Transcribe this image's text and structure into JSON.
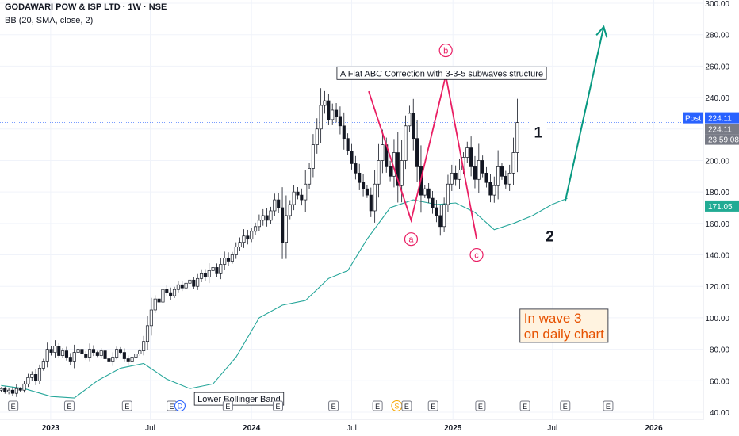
{
  "header": {
    "title": "GODAWARI POW & ISP LTD · 1W · NSE",
    "indicator": "BB (20, SMA, close, 2)"
  },
  "colors": {
    "up": "#26a69a",
    "down": "#131722",
    "candle": "#131722",
    "band": "#26a69a",
    "wave_line": "#e91e63",
    "arrow": "#089981",
    "post_badge": "#2962ff",
    "band_badge": "#22ab94",
    "target_text": "#e65100",
    "target_bg": "#fff3e0"
  },
  "chart_data": {
    "type": "candlestick",
    "y_axis": {
      "side": "right",
      "ylim": [
        40,
        300
      ],
      "ticks": [
        "40.00",
        "60.00",
        "80.00",
        "100.00",
        "120.00",
        "140.00",
        "160.00",
        "180.00",
        "200.00",
        "220.00",
        "240.00",
        "260.00",
        "280.00",
        "300.00"
      ]
    },
    "x_axis": {
      "start": "2022-10-01",
      "end": "2026-04-01",
      "ticks": [
        {
          "label": "2023",
          "date": "2023-01-01",
          "bold": true
        },
        {
          "label": "Jul",
          "date": "2023-07-01",
          "bold": false
        },
        {
          "label": "2024",
          "date": "2024-01-01",
          "bold": true
        },
        {
          "label": "Jul",
          "date": "2024-07-01",
          "bold": false
        },
        {
          "label": "2025",
          "date": "2025-01-01",
          "bold": true
        },
        {
          "label": "Jul",
          "date": "2025-07-01",
          "bold": false
        },
        {
          "label": "2026",
          "date": "2026-01-01",
          "bold": true
        }
      ]
    },
    "price_badges": [
      {
        "label": "Post",
        "value": "224.11",
        "kind": "post"
      },
      {
        "value": "224.11",
        "kind": "last"
      },
      {
        "value": "23:59:08",
        "kind": "countdown"
      },
      {
        "value": "171.05",
        "kind": "band"
      }
    ],
    "current_price": 224.11,
    "series": [
      {
        "name": "Price",
        "type": "candles",
        "x_start": "2022-10-03",
        "interval_days": 7,
        "closes": [
          55,
          53,
          54,
          52,
          55,
          54,
          58,
          62,
          64,
          60,
          68,
          72,
          80,
          78,
          82,
          76,
          79,
          75,
          72,
          78,
          80,
          77,
          75,
          80,
          78,
          76,
          79,
          74,
          72,
          75,
          80,
          78,
          74,
          72,
          75,
          77,
          79,
          85,
          95,
          105,
          112,
          110,
          118,
          116,
          114,
          118,
          121,
          119,
          122,
          124,
          120,
          125,
          128,
          126,
          130,
          132,
          128,
          134,
          138,
          136,
          140,
          145,
          148,
          152,
          150,
          155,
          158,
          162,
          165,
          162,
          168,
          175,
          170,
          148,
          165,
          172,
          180,
          178,
          175,
          185,
          195,
          210,
          220,
          235,
          238,
          226,
          232,
          228,
          222,
          214,
          206,
          198,
          192,
          186,
          182,
          178,
          168,
          185,
          200,
          210,
          196,
          190,
          205,
          184,
          200,
          222,
          230,
          214,
          196,
          178,
          182,
          176,
          170,
          165,
          158,
          172,
          185,
          192,
          188,
          194,
          202,
          208,
          196,
          188,
          200,
          192,
          186,
          178,
          184,
          196,
          190,
          185,
          192,
          205,
          224.11
        ]
      },
      {
        "name": "Lower Bollinger Band",
        "type": "line",
        "points": [
          [
            "2022-10-03",
            57
          ],
          [
            "2022-11-14",
            55
          ],
          [
            "2023-01-02",
            50
          ],
          [
            "2023-02-13",
            49
          ],
          [
            "2023-03-27",
            60
          ],
          [
            "2023-05-08",
            68
          ],
          [
            "2023-06-19",
            71
          ],
          [
            "2023-07-31",
            61
          ],
          [
            "2023-09-11",
            55
          ],
          [
            "2023-10-23",
            58
          ],
          [
            "2023-12-04",
            75
          ],
          [
            "2024-01-15",
            100
          ],
          [
            "2024-02-26",
            108
          ],
          [
            "2024-04-08",
            111
          ],
          [
            "2024-05-20",
            125
          ],
          [
            "2024-06-24",
            130
          ],
          [
            "2024-07-29",
            150
          ],
          [
            "2024-09-09",
            170
          ],
          [
            "2024-10-21",
            175
          ],
          [
            "2024-12-02",
            172
          ],
          [
            "2025-01-06",
            173
          ],
          [
            "2025-02-10",
            167
          ],
          [
            "2025-03-17",
            156
          ],
          [
            "2025-04-21",
            160
          ],
          [
            "2025-05-26",
            165
          ],
          [
            "2025-06-30",
            172
          ],
          [
            "2025-07-28",
            176
          ]
        ]
      }
    ],
    "annotations": [
      {
        "kind": "wave_polyline",
        "points": [
          [
            "2024-08-01",
            244
          ],
          [
            "2024-10-17",
            162
          ],
          [
            "2024-12-19",
            254
          ],
          [
            "2025-02-13",
            150
          ]
        ]
      },
      {
        "kind": "wave_label",
        "text": "a",
        "date": "2024-10-17",
        "price": 150
      },
      {
        "kind": "wave_label",
        "text": "b",
        "date": "2024-12-19",
        "price": 270
      },
      {
        "kind": "wave_label",
        "text": "c",
        "date": "2025-02-13",
        "price": 140
      },
      {
        "kind": "text_box",
        "text": "A Flat ABC Correction with 3-3-5 subwaves structure",
        "date": "2024-06-10",
        "price": 254
      },
      {
        "kind": "text_box",
        "text": "Lower Bollinger Band",
        "date": "2023-09-25",
        "price": 47
      },
      {
        "kind": "note_box",
        "lines": [
          "In wave 3",
          "on daily chart"
        ],
        "date": "2025-05-10",
        "price": 98
      },
      {
        "kind": "wave_count",
        "text": "1",
        "date": "2025-06-05",
        "price": 218
      },
      {
        "kind": "wave_count",
        "text": "2",
        "date": "2025-06-26",
        "price": 152
      },
      {
        "kind": "arrow",
        "from": [
          "2025-07-24",
          174
        ],
        "to": [
          "2025-10-02",
          285
        ]
      }
    ],
    "event_markers": [
      {
        "label": "E",
        "date": "2022-10-25"
      },
      {
        "label": "E",
        "date": "2023-02-04"
      },
      {
        "label": "E",
        "date": "2023-05-20"
      },
      {
        "label": "E",
        "date": "2023-08-09"
      },
      {
        "label": "D",
        "date": "2023-08-24"
      },
      {
        "label": "E",
        "date": "2023-11-19"
      },
      {
        "label": "E",
        "date": "2024-02-18"
      },
      {
        "label": "E",
        "date": "2024-05-29"
      },
      {
        "label": "E",
        "date": "2024-08-17"
      },
      {
        "label": "S",
        "date": "2024-09-21"
      },
      {
        "label": "E",
        "date": "2024-10-09"
      },
      {
        "label": "E",
        "date": "2024-11-26"
      },
      {
        "label": "E",
        "date": "2025-02-20"
      },
      {
        "label": "E",
        "date": "2025-05-12"
      },
      {
        "label": "E",
        "date": "2025-07-24"
      },
      {
        "label": "E",
        "date": "2025-10-10"
      }
    ]
  }
}
